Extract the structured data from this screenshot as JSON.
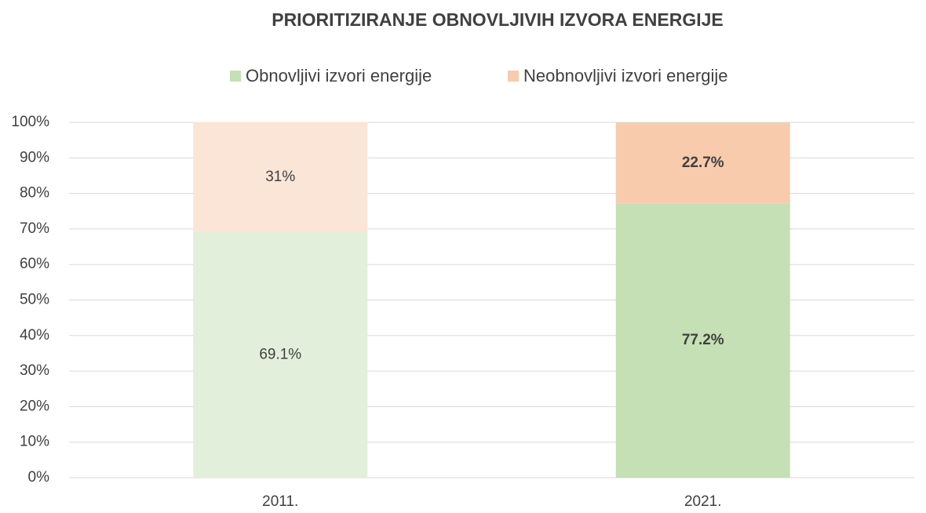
{
  "chart_data": {
    "type": "stacked_bar",
    "title": "PRIORITIZIRANJE OBNOVLJIVIH IZVORA ENERGIJE",
    "categories": [
      "2011.",
      "2021."
    ],
    "series": [
      {
        "name": "Obnovljivi izvori energije",
        "color": "#c5e0b4",
        "colors": [
          "#e2efda",
          "#c5e0b4"
        ],
        "values": [
          69.1,
          77.2
        ],
        "value_labels": [
          "69.1%",
          "77.2%"
        ]
      },
      {
        "name": "Neobnovljivi izvori energije",
        "color": "#f8cbad",
        "colors": [
          "#fbe5d6",
          "#f8cbad"
        ],
        "values": [
          31,
          22.7
        ],
        "value_labels": [
          "31%",
          "22.7%"
        ]
      }
    ],
    "value_label_bold": [
      false,
      true
    ],
    "ylim": [
      0,
      100
    ],
    "yticks": [
      {
        "value": 0,
        "label": "0%"
      },
      {
        "value": 10,
        "label": "10%"
      },
      {
        "value": 20,
        "label": "20%"
      },
      {
        "value": 30,
        "label": "30%"
      },
      {
        "value": 40,
        "label": "40%"
      },
      {
        "value": 50,
        "label": "50%"
      },
      {
        "value": 60,
        "label": "60%"
      },
      {
        "value": 70,
        "label": "70%"
      },
      {
        "value": 80,
        "label": "80%"
      },
      {
        "value": 90,
        "label": "90%"
      },
      {
        "value": 100,
        "label": "100%"
      }
    ],
    "grid": true,
    "legend": "top"
  }
}
